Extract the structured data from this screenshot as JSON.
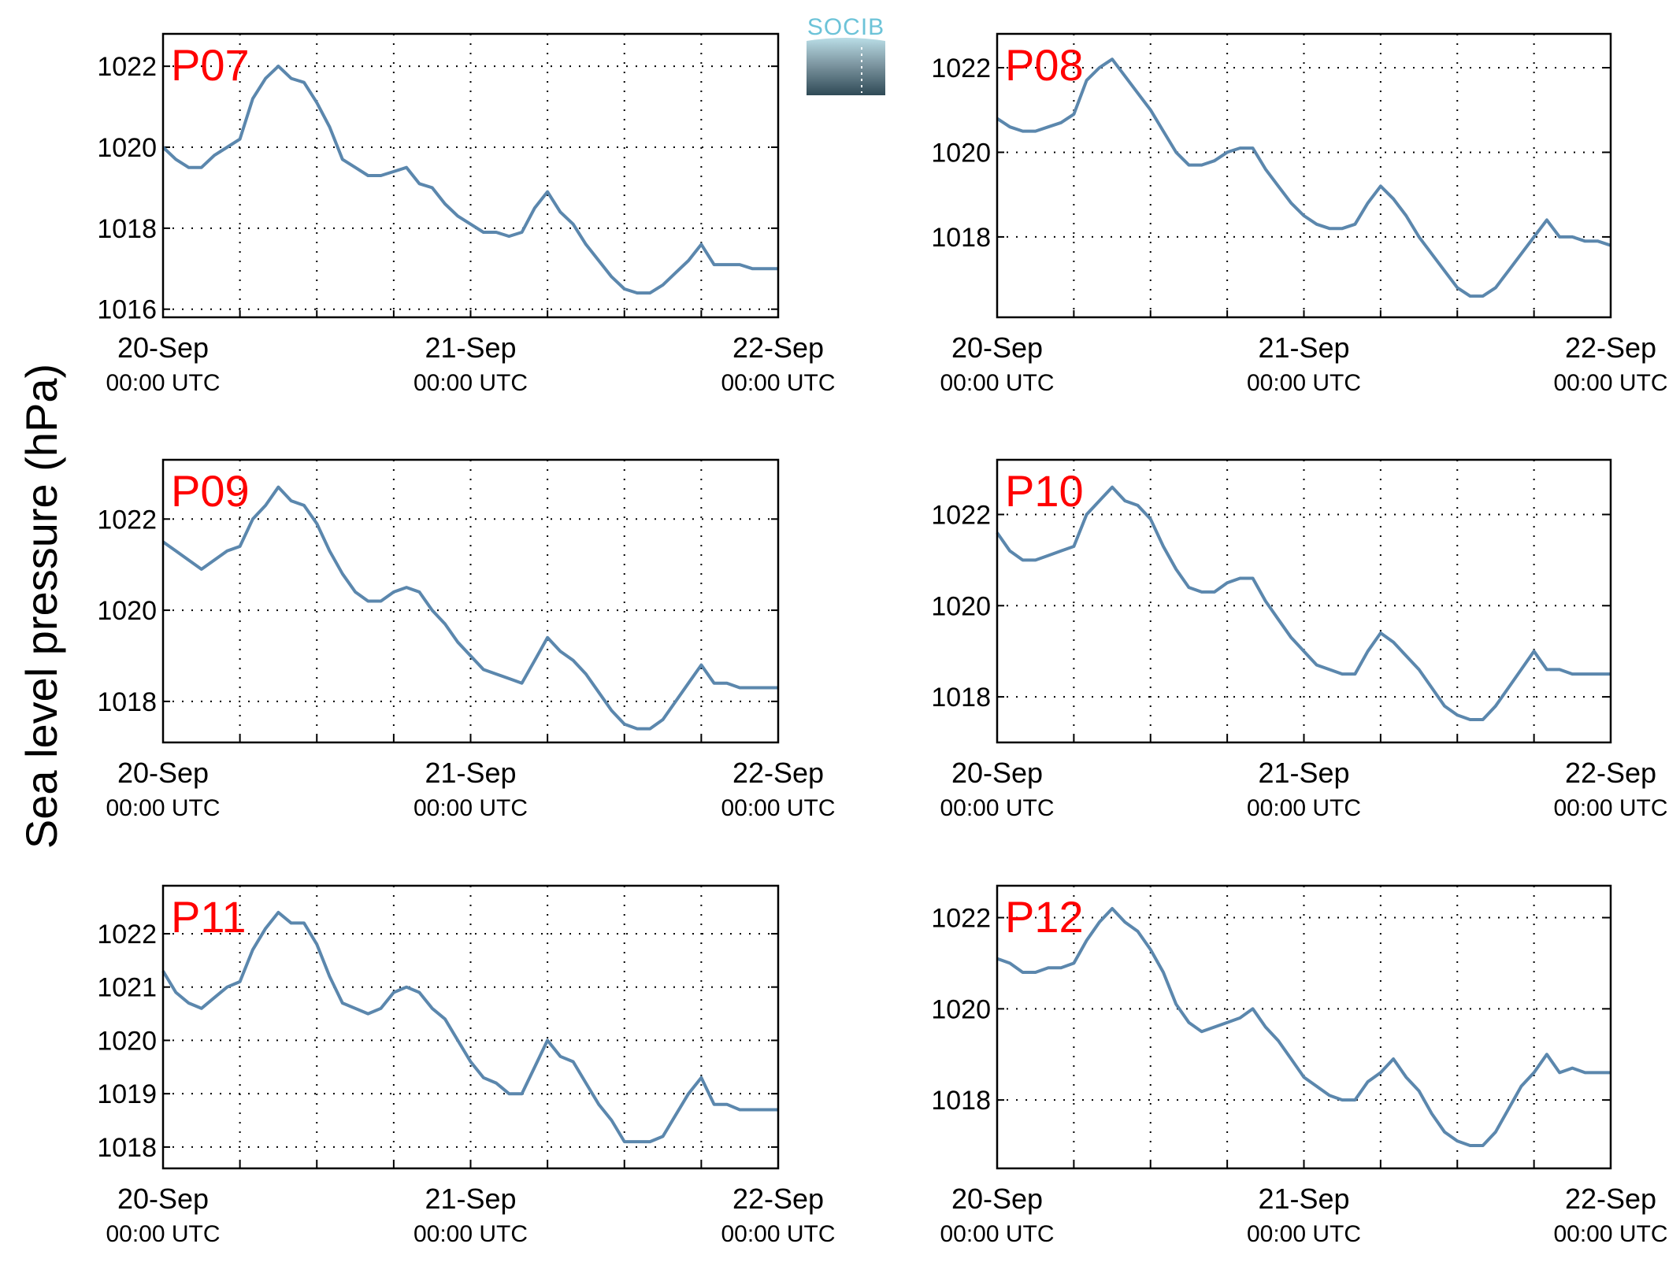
{
  "figure": {
    "ylabel": "Sea level pressure (hPa)",
    "logo_text": "SOCIB",
    "line_color": "#5b87ad",
    "label_color": "#ff0000"
  },
  "chart_data": [
    {
      "type": "line",
      "label": "P07",
      "ylim": [
        1015.8,
        1022.8
      ],
      "yticks": [
        1016,
        1018,
        1020,
        1022
      ],
      "xticks": [
        0,
        24,
        48
      ],
      "xlim": [
        0,
        48
      ],
      "xtick_labels": [
        "20-Sep",
        "21-Sep",
        "22-Sep"
      ],
      "xtick_sublabels": [
        "00:00 UTC",
        "00:00 UTC",
        "00:00 UTC"
      ],
      "grid": true,
      "x": [
        0,
        1,
        2,
        3,
        4,
        5,
        6,
        7,
        8,
        9,
        10,
        11,
        12,
        13,
        14,
        15,
        16,
        17,
        18,
        19,
        20,
        21,
        22,
        23,
        24,
        25,
        26,
        27,
        28,
        29,
        30,
        31,
        32,
        33,
        34,
        35,
        36,
        37,
        38,
        39,
        40,
        41,
        42,
        43,
        44,
        45,
        46,
        47,
        48
      ],
      "y": [
        1020.0,
        1019.7,
        1019.5,
        1019.5,
        1019.8,
        1020.0,
        1020.2,
        1021.2,
        1021.7,
        1022.0,
        1021.7,
        1021.6,
        1021.1,
        1020.5,
        1019.7,
        1019.5,
        1019.3,
        1019.3,
        1019.4,
        1019.5,
        1019.1,
        1019.0,
        1018.6,
        1018.3,
        1018.1,
        1017.9,
        1017.9,
        1017.8,
        1017.9,
        1018.5,
        1018.9,
        1018.4,
        1018.1,
        1017.6,
        1017.2,
        1016.8,
        1016.5,
        1016.4,
        1016.4,
        1016.6,
        1016.9,
        1017.2,
        1017.6,
        1017.1,
        1017.1,
        1017.1,
        1017.0,
        1017.0,
        1017.0
      ]
    },
    {
      "type": "line",
      "label": "P08",
      "ylim": [
        1016.1,
        1022.8
      ],
      "yticks": [
        1018,
        1020,
        1022
      ],
      "xticks": [
        0,
        24,
        48
      ],
      "xlim": [
        0,
        48
      ],
      "xtick_labels": [
        "20-Sep",
        "21-Sep",
        "22-Sep"
      ],
      "xtick_sublabels": [
        "00:00 UTC",
        "00:00 UTC",
        "00:00 UTC"
      ],
      "grid": true,
      "x": [
        0,
        1,
        2,
        3,
        4,
        5,
        6,
        7,
        8,
        9,
        10,
        11,
        12,
        13,
        14,
        15,
        16,
        17,
        18,
        19,
        20,
        21,
        22,
        23,
        24,
        25,
        26,
        27,
        28,
        29,
        30,
        31,
        32,
        33,
        34,
        35,
        36,
        37,
        38,
        39,
        40,
        41,
        42,
        43,
        44,
        45,
        46,
        47,
        48
      ],
      "y": [
        1020.8,
        1020.6,
        1020.5,
        1020.5,
        1020.6,
        1020.7,
        1020.9,
        1021.7,
        1022.0,
        1022.2,
        1021.8,
        1021.4,
        1021.0,
        1020.5,
        1020.0,
        1019.7,
        1019.7,
        1019.8,
        1020.0,
        1020.1,
        1020.1,
        1019.6,
        1019.2,
        1018.8,
        1018.5,
        1018.3,
        1018.2,
        1018.2,
        1018.3,
        1018.8,
        1019.2,
        1018.9,
        1018.5,
        1018.0,
        1017.6,
        1017.2,
        1016.8,
        1016.6,
        1016.6,
        1016.8,
        1017.2,
        1017.6,
        1018.0,
        1018.4,
        1018.0,
        1018.0,
        1017.9,
        1017.9,
        1017.8
      ]
    },
    {
      "type": "line",
      "label": "P09",
      "ylim": [
        1017.1,
        1023.3
      ],
      "yticks": [
        1018,
        1020,
        1022
      ],
      "xticks": [
        0,
        24,
        48
      ],
      "xlim": [
        0,
        48
      ],
      "xtick_labels": [
        "20-Sep",
        "21-Sep",
        "22-Sep"
      ],
      "xtick_sublabels": [
        "00:00 UTC",
        "00:00 UTC",
        "00:00 UTC"
      ],
      "grid": true,
      "x": [
        0,
        1,
        2,
        3,
        4,
        5,
        6,
        7,
        8,
        9,
        10,
        11,
        12,
        13,
        14,
        15,
        16,
        17,
        18,
        19,
        20,
        21,
        22,
        23,
        24,
        25,
        26,
        27,
        28,
        29,
        30,
        31,
        32,
        33,
        34,
        35,
        36,
        37,
        38,
        39,
        40,
        41,
        42,
        43,
        44,
        45,
        46,
        47,
        48
      ],
      "y": [
        1021.5,
        1021.3,
        1021.1,
        1020.9,
        1021.1,
        1021.3,
        1021.4,
        1022.0,
        1022.3,
        1022.7,
        1022.4,
        1022.3,
        1021.9,
        1021.3,
        1020.8,
        1020.4,
        1020.2,
        1020.2,
        1020.4,
        1020.5,
        1020.4,
        1020.0,
        1019.7,
        1019.3,
        1019.0,
        1018.7,
        1018.6,
        1018.5,
        1018.4,
        1018.9,
        1019.4,
        1019.1,
        1018.9,
        1018.6,
        1018.2,
        1017.8,
        1017.5,
        1017.4,
        1017.4,
        1017.6,
        1018.0,
        1018.4,
        1018.8,
        1018.4,
        1018.4,
        1018.3,
        1018.3,
        1018.3,
        1018.3
      ]
    },
    {
      "type": "line",
      "label": "P10",
      "ylim": [
        1017.0,
        1023.2
      ],
      "yticks": [
        1018,
        1020,
        1022
      ],
      "xticks": [
        0,
        24,
        48
      ],
      "xlim": [
        0,
        48
      ],
      "xtick_labels": [
        "20-Sep",
        "21-Sep",
        "22-Sep"
      ],
      "xtick_sublabels": [
        "00:00 UTC",
        "00:00 UTC",
        "00:00 UTC"
      ],
      "grid": true,
      "x": [
        0,
        1,
        2,
        3,
        4,
        5,
        6,
        7,
        8,
        9,
        10,
        11,
        12,
        13,
        14,
        15,
        16,
        17,
        18,
        19,
        20,
        21,
        22,
        23,
        24,
        25,
        26,
        27,
        28,
        29,
        30,
        31,
        32,
        33,
        34,
        35,
        36,
        37,
        38,
        39,
        40,
        41,
        42,
        43,
        44,
        45,
        46,
        47,
        48
      ],
      "y": [
        1021.6,
        1021.2,
        1021.0,
        1021.0,
        1021.1,
        1021.2,
        1021.3,
        1022.0,
        1022.3,
        1022.6,
        1022.3,
        1022.2,
        1021.9,
        1021.3,
        1020.8,
        1020.4,
        1020.3,
        1020.3,
        1020.5,
        1020.6,
        1020.6,
        1020.1,
        1019.7,
        1019.3,
        1019.0,
        1018.7,
        1018.6,
        1018.5,
        1018.5,
        1019.0,
        1019.4,
        1019.2,
        1018.9,
        1018.6,
        1018.2,
        1017.8,
        1017.6,
        1017.5,
        1017.5,
        1017.8,
        1018.2,
        1018.6,
        1019.0,
        1018.6,
        1018.6,
        1018.5,
        1018.5,
        1018.5,
        1018.5
      ]
    },
    {
      "type": "line",
      "label": "P11",
      "ylim": [
        1017.6,
        1022.9
      ],
      "yticks": [
        1018,
        1019,
        1020,
        1021,
        1022
      ],
      "xticks": [
        0,
        24,
        48
      ],
      "xlim": [
        0,
        48
      ],
      "xtick_labels": [
        "20-Sep",
        "21-Sep",
        "22-Sep"
      ],
      "xtick_sublabels": [
        "00:00 UTC",
        "00:00 UTC",
        "00:00 UTC"
      ],
      "grid": true,
      "x": [
        0,
        1,
        2,
        3,
        4,
        5,
        6,
        7,
        8,
        9,
        10,
        11,
        12,
        13,
        14,
        15,
        16,
        17,
        18,
        19,
        20,
        21,
        22,
        23,
        24,
        25,
        26,
        27,
        28,
        29,
        30,
        31,
        32,
        33,
        34,
        35,
        36,
        37,
        38,
        39,
        40,
        41,
        42,
        43,
        44,
        45,
        46,
        47,
        48
      ],
      "y": [
        1021.3,
        1020.9,
        1020.7,
        1020.6,
        1020.8,
        1021.0,
        1021.1,
        1021.7,
        1022.1,
        1022.4,
        1022.2,
        1022.2,
        1021.8,
        1021.2,
        1020.7,
        1020.6,
        1020.5,
        1020.6,
        1020.9,
        1021.0,
        1020.9,
        1020.6,
        1020.4,
        1020.0,
        1019.6,
        1019.3,
        1019.2,
        1019.0,
        1019.0,
        1019.5,
        1020.0,
        1019.7,
        1019.6,
        1019.2,
        1018.8,
        1018.5,
        1018.1,
        1018.1,
        1018.1,
        1018.2,
        1018.6,
        1019.0,
        1019.3,
        1018.8,
        1018.8,
        1018.7,
        1018.7,
        1018.7,
        1018.7
      ]
    },
    {
      "type": "line",
      "label": "P12",
      "ylim": [
        1016.5,
        1022.7
      ],
      "yticks": [
        1018,
        1020,
        1022
      ],
      "xticks": [
        0,
        24,
        48
      ],
      "xlim": [
        0,
        48
      ],
      "xtick_labels": [
        "20-Sep",
        "21-Sep",
        "22-Sep"
      ],
      "xtick_sublabels": [
        "00:00 UTC",
        "00:00 UTC",
        "00:00 UTC"
      ],
      "grid": true,
      "x": [
        0,
        1,
        2,
        3,
        4,
        5,
        6,
        7,
        8,
        9,
        10,
        11,
        12,
        13,
        14,
        15,
        16,
        17,
        18,
        19,
        20,
        21,
        22,
        23,
        24,
        25,
        26,
        27,
        28,
        29,
        30,
        31,
        32,
        33,
        34,
        35,
        36,
        37,
        38,
        39,
        40,
        41,
        42,
        43,
        44,
        45,
        46,
        47,
        48
      ],
      "y": [
        1021.1,
        1021.0,
        1020.8,
        1020.8,
        1020.9,
        1020.9,
        1021.0,
        1021.5,
        1021.9,
        1022.2,
        1021.9,
        1021.7,
        1021.3,
        1020.8,
        1020.1,
        1019.7,
        1019.5,
        1019.6,
        1019.7,
        1019.8,
        1020.0,
        1019.6,
        1019.3,
        1018.9,
        1018.5,
        1018.3,
        1018.1,
        1018.0,
        1018.0,
        1018.4,
        1018.6,
        1018.9,
        1018.5,
        1018.2,
        1017.7,
        1017.3,
        1017.1,
        1017.0,
        1017.0,
        1017.3,
        1017.8,
        1018.3,
        1018.6,
        1019.0,
        1018.6,
        1018.7,
        1018.6,
        1018.6,
        1018.6
      ]
    }
  ]
}
